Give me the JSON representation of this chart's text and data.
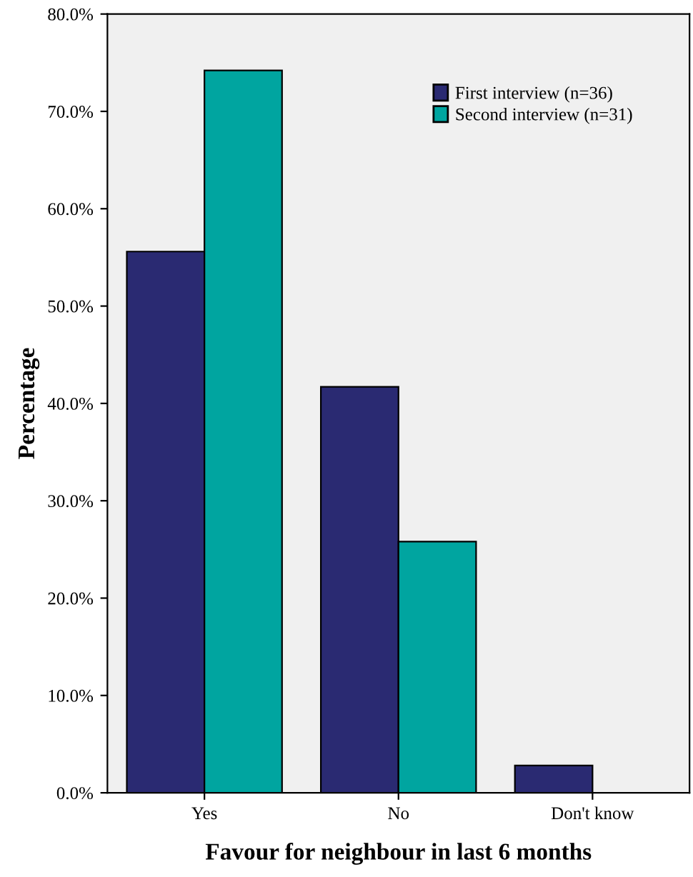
{
  "chart_data": {
    "type": "bar",
    "xlabel": "Favour for neighbour in last 6 months",
    "ylabel": "Percentage",
    "categories": [
      "Yes",
      "No",
      "Don't know"
    ],
    "series": [
      {
        "name": "First interview (n=36)",
        "color": "#2a2a72",
        "values": [
          55.6,
          41.7,
          2.8
        ]
      },
      {
        "name": "Second interview (n=31)",
        "color": "#00a5a0",
        "values": [
          74.2,
          25.8,
          0
        ]
      }
    ],
    "ylim": [
      0,
      80
    ],
    "yticks": [
      {
        "value": 0,
        "label": "0.0%"
      },
      {
        "value": 10,
        "label": "10.0%"
      },
      {
        "value": 20,
        "label": "20.0%"
      },
      {
        "value": 30,
        "label": "30.0%"
      },
      {
        "value": 40,
        "label": "40.0%"
      },
      {
        "value": 50,
        "label": "50.0%"
      },
      {
        "value": 60,
        "label": "60.0%"
      },
      {
        "value": 70,
        "label": "70.0%"
      },
      {
        "value": 80,
        "label": "80.0%"
      }
    ],
    "legend": "top right",
    "grid": false
  }
}
